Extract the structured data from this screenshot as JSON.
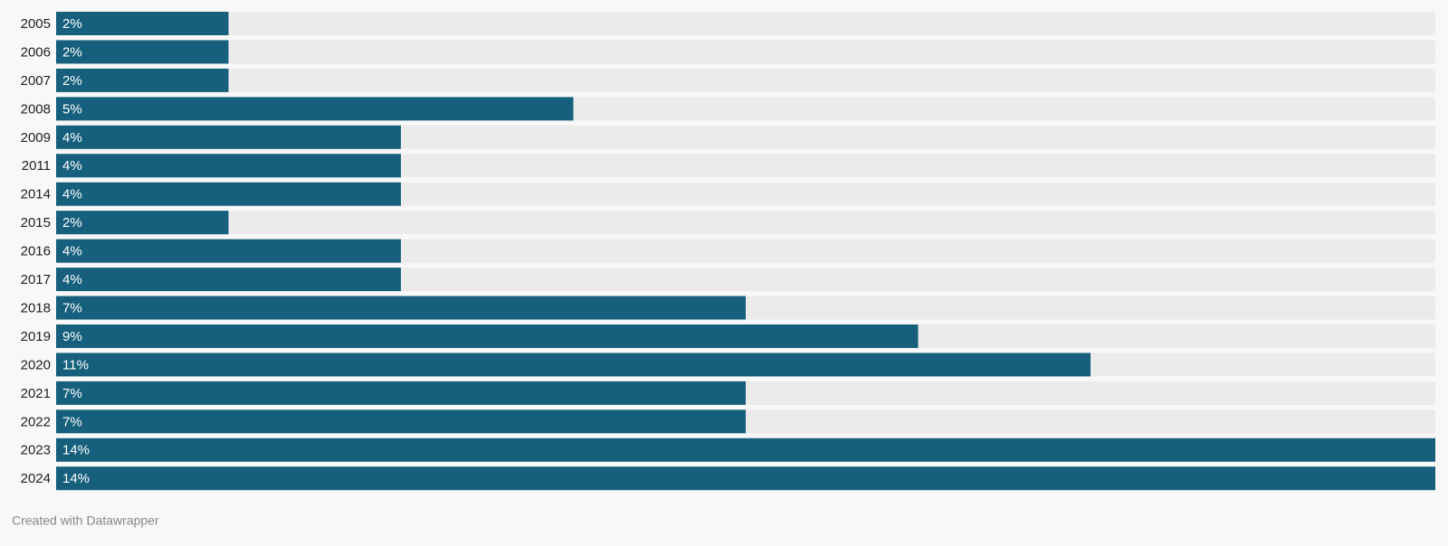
{
  "chart_data": {
    "type": "bar",
    "orientation": "horizontal",
    "categories": [
      "2005",
      "2006",
      "2007",
      "2008",
      "2009",
      "2011",
      "2014",
      "2015",
      "2016",
      "2017",
      "2018",
      "2019",
      "2020",
      "2021",
      "2022",
      "2023",
      "2024"
    ],
    "values": [
      1.75,
      1.75,
      1.75,
      5.25,
      3.5,
      3.5,
      3.5,
      1.75,
      3.5,
      3.5,
      7,
      8.75,
      10.5,
      7,
      7,
      14,
      14
    ],
    "value_labels": [
      "2%",
      "2%",
      "2%",
      "5%",
      "4%",
      "4%",
      "4%",
      "2%",
      "4%",
      "4%",
      "7%",
      "9%",
      "11%",
      "7%",
      "7%",
      "14%",
      "14%"
    ],
    "color": "#17607d",
    "track_color": "#ebebeb",
    "xlim": [
      0,
      14
    ],
    "credit": "Created with Datawrapper"
  }
}
